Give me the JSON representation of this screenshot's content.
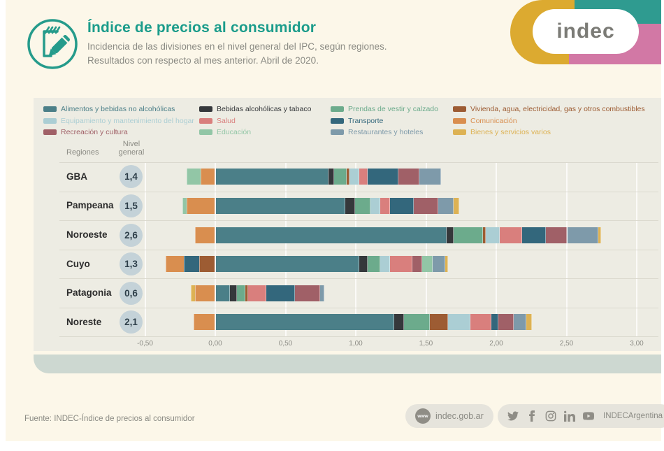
{
  "header": {
    "title": "Índice de precios al consumidor",
    "subtitle_line1": "Incidencia de las divisiones en el nivel general del IPC, según regiones.",
    "subtitle_line2": "Resultados con respecto al mes anterior. Abril de 2020.",
    "icon": "notepad-pencil-icon",
    "logo_text": "indec"
  },
  "colors": {
    "accent_teal": "#1b9c8b",
    "page_bg": "#fcf7e9",
    "panel_bg": "#edece3",
    "strip": "#cdd8d1",
    "badge_bg": "#c4d2d8",
    "muted_text": "#8b8b84",
    "pill_bg": "#e6e4dc",
    "logo_yellow": "#dcaa30",
    "logo_teal": "#2f9b90",
    "logo_pink": "#d278a5"
  },
  "table_headers": {
    "regions": "Regiones",
    "level_line1": "Nivel",
    "level_line2": "general"
  },
  "chart_data": {
    "type": "bar",
    "subtype": "horizontal-stacked",
    "title": "Incidencia de las divisiones en el nivel general del IPC, según regiones. Abril de 2020",
    "xlabel": "",
    "ylabel": "Regiones",
    "grid": true,
    "legend_position": "top",
    "xlim": [
      -0.5,
      3.0
    ],
    "x_ticks": [
      "-0,50",
      "0,00",
      "0,50",
      "1,00",
      "1,50",
      "2,00",
      "2,50",
      "3,00"
    ],
    "x_tick_values": [
      -0.5,
      0,
      0.5,
      1,
      1.5,
      2,
      2.5,
      3
    ],
    "categories": [
      "GBA",
      "Pampeana",
      "Noroeste",
      "Cuyo",
      "Patagonia",
      "Noreste"
    ],
    "nivel_general": [
      "1,4",
      "1,5",
      "2,6",
      "1,3",
      "0,6",
      "2,1"
    ],
    "series": [
      {
        "name": "Alimentos y bebidas no alcohólicas",
        "slug": "alimentos",
        "color": "#4b7f88",
        "values": [
          0.8,
          0.92,
          1.64,
          1.02,
          0.1,
          1.27
        ]
      },
      {
        "name": "Bebidas alcohólicas y tabaco",
        "slug": "bebidas-alcoholicas",
        "color": "#35383b",
        "values": [
          0.04,
          0.07,
          0.05,
          0.06,
          0.05,
          0.07
        ]
      },
      {
        "name": "Prendas de vestir y calzado",
        "slug": "prendas",
        "color": "#6cab8c",
        "values": [
          0.09,
          0.11,
          0.21,
          0.09,
          0.06,
          0.18
        ]
      },
      {
        "name": "Vivienda, agua, electricidad, gas y otros combustibles",
        "slug": "vivienda",
        "color": "#9d5c33",
        "values": [
          0.02,
          0.0,
          0.02,
          -0.11,
          0.02,
          0.13
        ]
      },
      {
        "name": "Equipamiento y mantenimiento del hogar",
        "slug": "equipamiento",
        "color": "#abced4",
        "values": [
          0.07,
          0.07,
          0.1,
          0.07,
          0.0,
          0.16
        ]
      },
      {
        "name": "Salud",
        "slug": "salud",
        "color": "#d97f7d",
        "values": [
          0.06,
          0.07,
          0.16,
          0.16,
          0.13,
          0.15
        ]
      },
      {
        "name": "Transporte",
        "slug": "transporte",
        "color": "#33677c",
        "values": [
          0.22,
          0.17,
          0.17,
          -0.11,
          0.2,
          0.05
        ]
      },
      {
        "name": "Comunicación",
        "slug": "comunicacion",
        "color": "#d98e4f",
        "values": [
          -0.1,
          -0.2,
          -0.14,
          -0.13,
          -0.14,
          -0.15
        ]
      },
      {
        "name": "Recreación y cultura",
        "slug": "recreacion",
        "color": "#a06067",
        "values": [
          0.15,
          0.17,
          0.15,
          0.07,
          0.18,
          0.11
        ]
      },
      {
        "name": "Educación",
        "slug": "educacion",
        "color": "#92c6a6",
        "values": [
          -0.1,
          -0.03,
          0.0,
          0.07,
          0.0,
          0.0
        ]
      },
      {
        "name": "Restaurantes y hoteles",
        "slug": "restaurantes",
        "color": "#7e9aaa",
        "values": [
          0.15,
          0.11,
          0.22,
          0.09,
          0.03,
          0.09
        ]
      },
      {
        "name": "Bienes y servicios varios",
        "slug": "bienes",
        "color": "#ddb254",
        "values": [
          0.0,
          0.04,
          0.02,
          0.02,
          -0.03,
          0.04
        ]
      }
    ],
    "legend_columns": [
      [
        0,
        4,
        8
      ],
      [
        1,
        5,
        9
      ],
      [
        2,
        6,
        10
      ],
      [
        3,
        7,
        11
      ]
    ]
  },
  "footer": {
    "source": "Fuente: INDEC-Índice de precios al consumidor",
    "www_label": "www",
    "website": "indec.gob.ar",
    "social_handle": "INDECArgentina",
    "social_icons": [
      "twitter-icon",
      "facebook-icon",
      "instagram-icon",
      "linkedin-icon",
      "youtube-icon"
    ]
  }
}
